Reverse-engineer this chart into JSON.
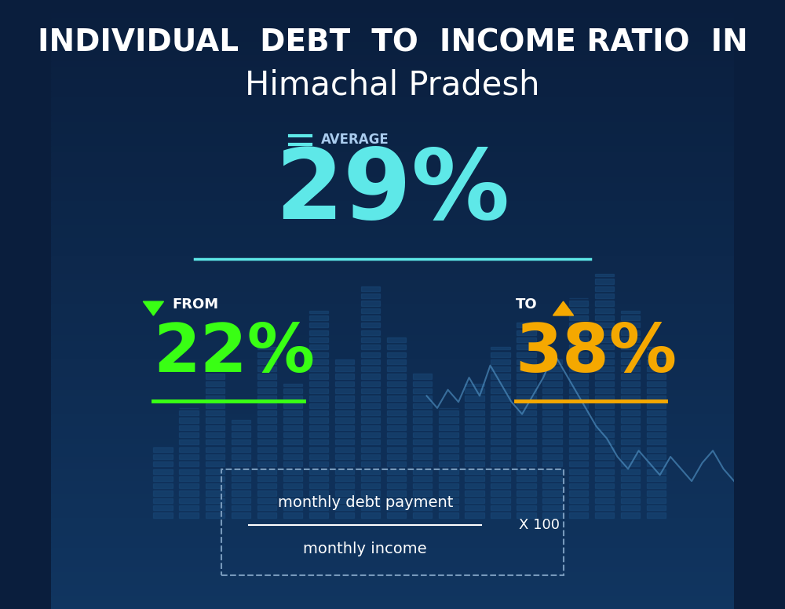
{
  "title_line1": "INDIVIDUAL  DEBT  TO  INCOME RATIO  IN",
  "title_line2": "Himachal Pradesh",
  "bg_color_top": "#0a1e3d",
  "bg_color_bottom": "#0d2a50",
  "average_label": "AVERAGE",
  "average_value": "29%",
  "average_color": "#5ee8e8",
  "average_underline_color": "#5ee8e8",
  "from_label": "FROM",
  "from_value": "22%",
  "from_color": "#39ff14",
  "from_underline_color": "#39ff14",
  "to_label": "TO",
  "to_value": "38%",
  "to_color": "#f5a800",
  "to_underline_color": "#f5a800",
  "formula_numerator": "monthly debt payment",
  "formula_denominator": "monthly income",
  "formula_multiplier": "X 100",
  "formula_border_color": "#7799bb",
  "white_color": "#ffffff",
  "light_blue_color": "#aaccee",
  "down_arrow_color": "#39ff14",
  "up_arrow_color": "#f5a800",
  "equals_color": "#5ee8e8"
}
